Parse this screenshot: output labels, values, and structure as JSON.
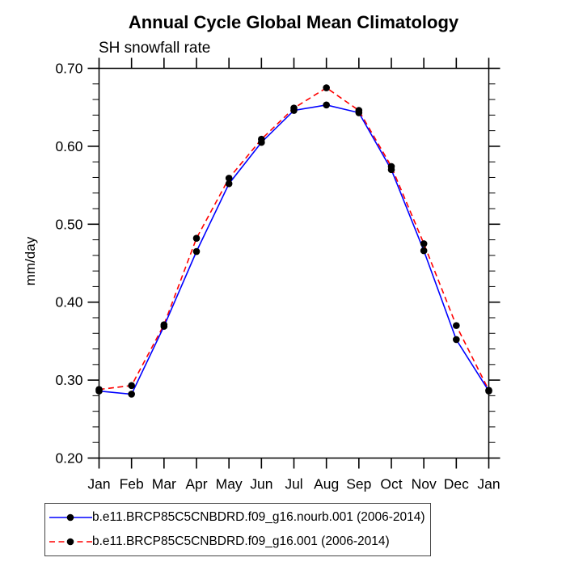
{
  "title": "Annual Cycle Global Mean Climatology",
  "subtitle": "SH snowfall rate",
  "chart_data": {
    "type": "line",
    "categories": [
      "Jan",
      "Feb",
      "Mar",
      "Apr",
      "May",
      "Jun",
      "Jul",
      "Aug",
      "Sep",
      "Oct",
      "Nov",
      "Dec",
      "Jan"
    ],
    "series": [
      {
        "name": "b.e11.BRCP85C5CNBDRD.f09_g16.nourb.001 (2006-2014)",
        "color": "#0000ff",
        "line_style": "solid",
        "marker": "circle",
        "marker_color": "#000000",
        "values": [
          0.286,
          0.282,
          0.369,
          0.465,
          0.552,
          0.605,
          0.646,
          0.653,
          0.643,
          0.57,
          0.466,
          0.352,
          0.286
        ]
      },
      {
        "name": "b.e11.BRCP85C5CNBDRD.f09_g16.001 (2006-2014)",
        "color": "#ff0000",
        "line_style": "dashed",
        "marker": "circle",
        "marker_color": "#000000",
        "values": [
          0.288,
          0.293,
          0.371,
          0.482,
          0.559,
          0.609,
          0.649,
          0.675,
          0.646,
          0.574,
          0.475,
          0.37,
          0.287
        ]
      }
    ],
    "xlabel": "",
    "ylabel": "mm/day",
    "ylim": [
      0.2,
      0.7
    ],
    "ytick_step": 0.1,
    "yminor_step": 0.02,
    "ytick_labels": [
      "0.70",
      "0.60",
      "0.50",
      "0.40",
      "0.30",
      "0.20"
    ],
    "grid": false,
    "legend_position": "bottom",
    "frame_color": "#000000"
  }
}
